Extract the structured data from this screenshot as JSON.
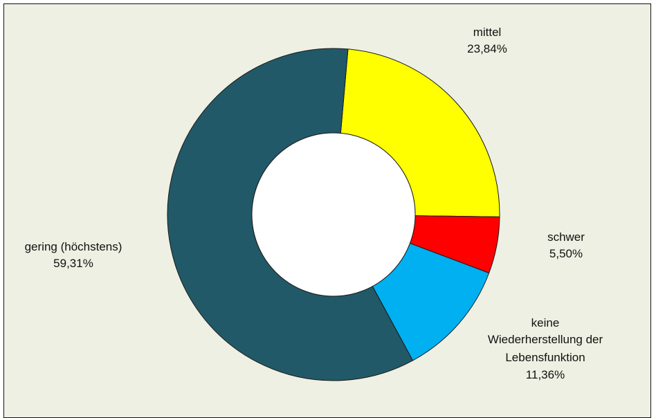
{
  "chart_data": {
    "type": "pie",
    "variant": "donut",
    "title": "",
    "slices": [
      {
        "label": "mittel",
        "value": 23.84,
        "value_text": "23,84%",
        "color": "#ffff00"
      },
      {
        "label": "schwer",
        "value": 5.5,
        "value_text": "5,50%",
        "color": "#ff0000"
      },
      {
        "label": "keine Wiederherstellung der Lebensfunktion",
        "label_lines": [
          "keine",
          "Wiederherstellung der",
          "Lebensfunktion"
        ],
        "value": 11.36,
        "value_text": "11,36%",
        "color": "#00b0f0"
      },
      {
        "label": "gering (höchstens)",
        "value": 59.31,
        "value_text": "59,31%",
        "color": "#215968"
      }
    ],
    "legend": "none"
  }
}
